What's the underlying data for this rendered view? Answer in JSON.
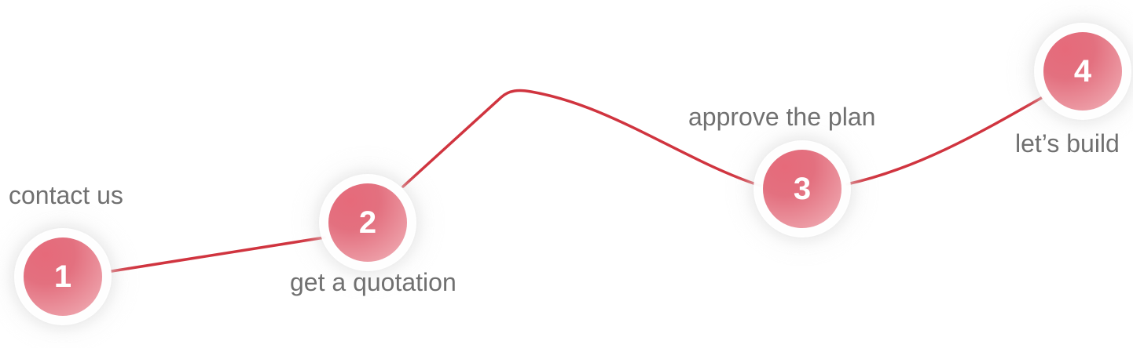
{
  "diagram": {
    "line_color": "#d0343f",
    "node_color": "#e3707f",
    "label_color": "#707070",
    "steps": [
      {
        "number": "1",
        "label": "contact us"
      },
      {
        "number": "2",
        "label": "get a quotation"
      },
      {
        "number": "3",
        "label": "approve the plan"
      },
      {
        "number": "4",
        "label": "let’s build"
      }
    ]
  }
}
